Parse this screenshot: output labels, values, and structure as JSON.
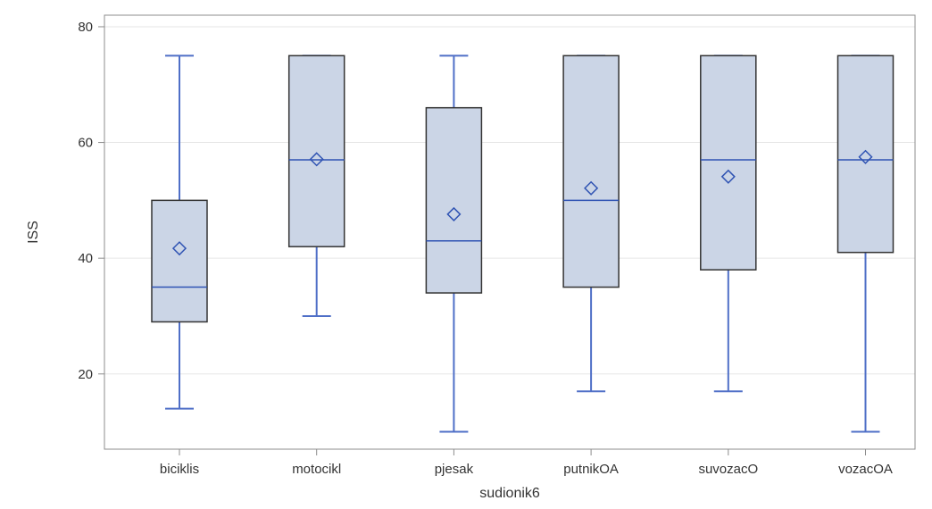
{
  "chart_data": {
    "type": "boxplot",
    "xlabel": "sudionik6",
    "ylabel": "ISS",
    "ylim": [
      7,
      82
    ],
    "yticks": [
      20,
      40,
      60,
      80
    ],
    "grid": "horizontal",
    "colors": {
      "box_fill": "#cbd5e6",
      "box_stroke": "#333333",
      "whisker": "#4f6fc7",
      "median": "#2f53b3",
      "mean_marker": "#2f53b3",
      "grid": "#e6e6e6",
      "axis": "#8c8c8c"
    },
    "categories": [
      "biciklis",
      "motocikl",
      "pjesak",
      "putnikOA",
      "suvozacO",
      "vozacOA"
    ],
    "boxes": [
      {
        "category": "biciklis",
        "min": 14,
        "q1": 29,
        "median": 35,
        "q3": 50,
        "max": 75,
        "mean": 41.7
      },
      {
        "category": "motocikl",
        "min": 30,
        "q1": 42,
        "median": 57,
        "q3": 75,
        "max": 75,
        "mean": 57.1
      },
      {
        "category": "pjesak",
        "min": 10,
        "q1": 34,
        "median": 43,
        "q3": 66,
        "max": 75,
        "mean": 47.6
      },
      {
        "category": "putnikOA",
        "min": 17,
        "q1": 35,
        "median": 50,
        "q3": 75,
        "max": 75,
        "mean": 52.1
      },
      {
        "category": "suvozacO",
        "min": 17,
        "q1": 38,
        "median": 57,
        "q3": 75,
        "max": 75,
        "mean": 54.1
      },
      {
        "category": "vozacOA",
        "min": 10,
        "q1": 41,
        "median": 57,
        "q3": 75,
        "max": 75,
        "mean": 57.5
      }
    ]
  }
}
